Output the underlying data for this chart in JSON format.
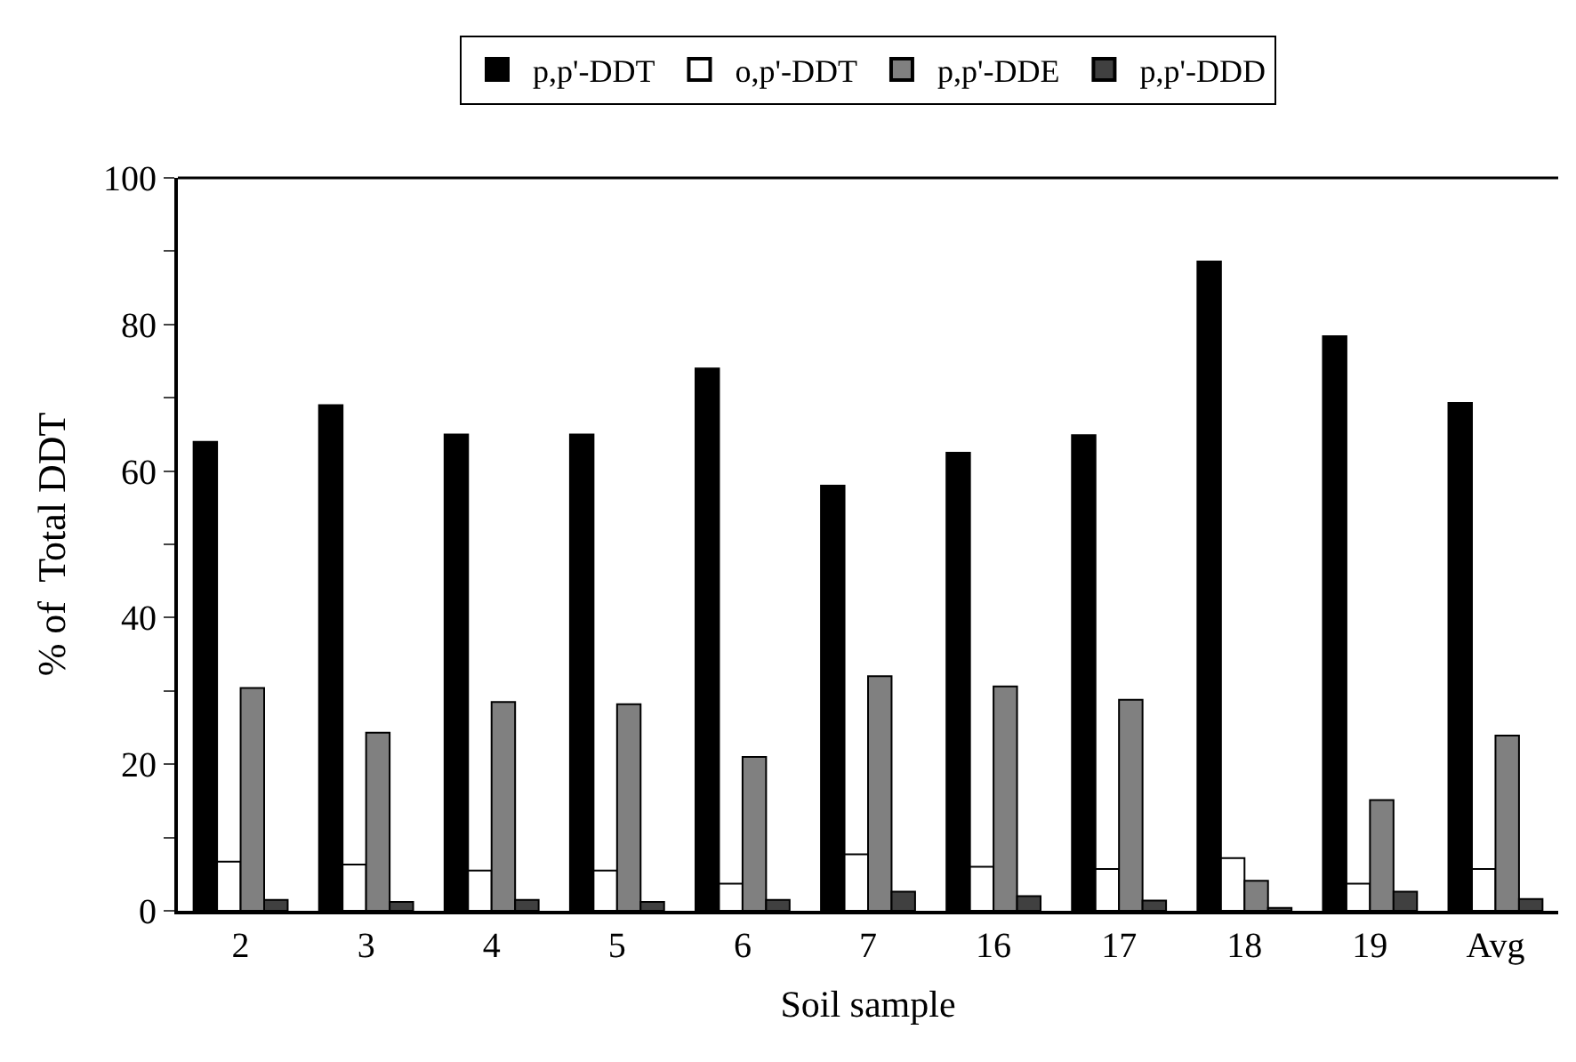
{
  "chart_data": {
    "type": "bar",
    "xlabel": "Soil sample",
    "ylabel": "% of  Total DDT",
    "categories": [
      "2",
      "3",
      "4",
      "5",
      "6",
      "7",
      "16",
      "17",
      "18",
      "19",
      "Avg"
    ],
    "series": [
      {
        "name": "p,p'-DDT",
        "color": "#000000",
        "values": [
          64,
          69,
          65,
          65,
          74,
          58,
          62.5,
          64.9,
          88.6,
          78.4,
          69.3
        ]
      },
      {
        "name": "o,p'-DDT",
        "color": "#ffffff",
        "values": [
          6.7,
          6.3,
          5.5,
          5.5,
          3.7,
          7.7,
          6.0,
          5.7,
          7.2,
          3.7,
          5.7
        ]
      },
      {
        "name": "p,p'-DDE",
        "color": "#808080",
        "values": [
          30.4,
          24.3,
          28.5,
          28.2,
          21.0,
          32,
          30.6,
          28.8,
          4.1,
          15.1,
          23.9
        ]
      },
      {
        "name": "p,p'-DDD",
        "color": "#404040",
        "values": [
          1.5,
          1.2,
          1.5,
          1.2,
          1.5,
          2.6,
          2.0,
          1.4,
          0.4,
          2.6,
          1.6
        ]
      }
    ],
    "ylim": [
      0,
      100
    ],
    "yticks": [
      0,
      {
        "value": 10,
        "label": null
      },
      20,
      {
        "value": 30,
        "label": null
      },
      40,
      {
        "value": 50,
        "label": null
      },
      60,
      {
        "value": 70,
        "label": null
      },
      80,
      {
        "value": 90,
        "label": null
      },
      100
    ],
    "legend": "top"
  }
}
